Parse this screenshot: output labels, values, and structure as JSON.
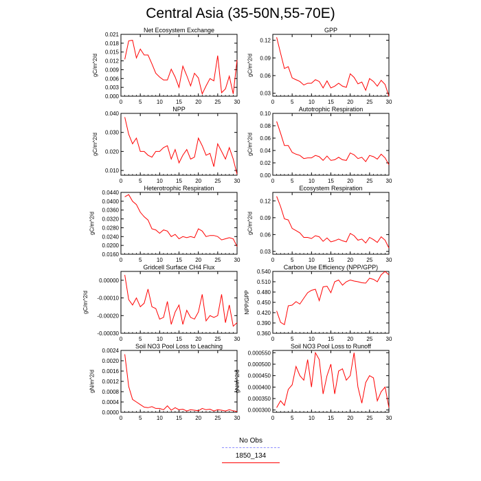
{
  "title": "Central Asia (35-50N,55-70E)",
  "legend": {
    "items": [
      {
        "label": "No Obs",
        "color": "#8c8cff",
        "style": "dashed"
      },
      {
        "label": "1850_134",
        "color": "#ff0000",
        "style": "solid"
      }
    ]
  },
  "chart_data": [
    {
      "type": "line",
      "title": "Net Ecosystem Exchange",
      "ylabel": "gC/m^2/d",
      "xlim": [
        0,
        30
      ],
      "ylim": [
        0.0,
        0.021
      ],
      "xticks": [
        "0",
        "5",
        "10",
        "15",
        "20",
        "25",
        "30"
      ],
      "yticks": [
        "0.000",
        "0.003",
        "0.006",
        "0.009",
        "0.012",
        "0.015",
        "0.018",
        "0.021"
      ],
      "series": [
        {
          "color": "#ff0000",
          "x": [
            1,
            2,
            3,
            4,
            5,
            6,
            7,
            8,
            9,
            10,
            11,
            12,
            13,
            14,
            15,
            16,
            17,
            18,
            19,
            20,
            21,
            22,
            23,
            24,
            25,
            26,
            27,
            28,
            29,
            30
          ],
          "values": [
            0.0125,
            0.0188,
            0.019,
            0.013,
            0.016,
            0.014,
            0.014,
            0.011,
            0.0078,
            0.0065,
            0.0055,
            0.0055,
            0.0092,
            0.0065,
            0.003,
            0.0102,
            0.007,
            0.0035,
            0.0078,
            0.0062,
            0.0008,
            0.0035,
            0.006,
            0.0052,
            0.0138,
            0.0012,
            0.0025,
            0.0068,
            0.0008,
            0.0123
          ]
        }
      ]
    },
    {
      "type": "line",
      "title": "GPP",
      "ylabel": "gC/m^2/d",
      "xlim": [
        0,
        30
      ],
      "ylim": [
        0.025,
        0.13
      ],
      "xticks": [
        "0",
        "5",
        "10",
        "15",
        "20",
        "25",
        "30"
      ],
      "yticks": [
        "0.03",
        "0.06",
        "0.09",
        "0.12"
      ],
      "series": [
        {
          "color": "#ff0000",
          "x": [
            1,
            2,
            3,
            4,
            5,
            6,
            7,
            8,
            9,
            10,
            11,
            12,
            13,
            14,
            15,
            16,
            17,
            18,
            19,
            20,
            21,
            22,
            23,
            24,
            25,
            26,
            27,
            28,
            29,
            30
          ],
          "values": [
            0.125,
            0.098,
            0.072,
            0.075,
            0.056,
            0.053,
            0.05,
            0.044,
            0.047,
            0.047,
            0.053,
            0.05,
            0.039,
            0.051,
            0.039,
            0.042,
            0.047,
            0.042,
            0.04,
            0.063,
            0.057,
            0.046,
            0.049,
            0.035,
            0.055,
            0.05,
            0.042,
            0.052,
            0.045,
            0.025
          ]
        }
      ]
    },
    {
      "type": "line",
      "title": "NPP",
      "ylabel": "gC/m^2/d",
      "xlim": [
        0,
        30
      ],
      "ylim": [
        0.0075,
        0.04
      ],
      "xticks": [
        "0",
        "5",
        "10",
        "15",
        "20",
        "25",
        "30"
      ],
      "yticks": [
        "0.010",
        "0.020",
        "0.030",
        "0.040"
      ],
      "series": [
        {
          "color": "#ff0000",
          "x": [
            1,
            2,
            3,
            4,
            5,
            6,
            7,
            8,
            9,
            10,
            11,
            12,
            13,
            14,
            15,
            16,
            17,
            18,
            19,
            20,
            21,
            22,
            23,
            24,
            25,
            26,
            27,
            28,
            29,
            30
          ],
          "values": [
            0.038,
            0.029,
            0.024,
            0.027,
            0.02,
            0.02,
            0.018,
            0.017,
            0.02,
            0.02,
            0.022,
            0.023,
            0.016,
            0.021,
            0.014,
            0.018,
            0.021,
            0.016,
            0.017,
            0.027,
            0.023,
            0.018,
            0.019,
            0.012,
            0.024,
            0.02,
            0.016,
            0.022,
            0.016,
            0.008
          ]
        }
      ]
    },
    {
      "type": "line",
      "title": "Autotrophic Respiration",
      "ylabel": "gC/m^2/d",
      "xlim": [
        0,
        30
      ],
      "ylim": [
        0.0,
        0.1
      ],
      "xticks": [
        "0",
        "5",
        "10",
        "15",
        "20",
        "25",
        "30"
      ],
      "yticks": [
        "0.00",
        "0.02",
        "0.04",
        "0.06",
        "0.08",
        "0.10"
      ],
      "series": [
        {
          "color": "#ff0000",
          "x": [
            1,
            2,
            3,
            4,
            5,
            6,
            7,
            8,
            9,
            10,
            11,
            12,
            13,
            14,
            15,
            16,
            17,
            18,
            19,
            20,
            21,
            22,
            23,
            24,
            25,
            26,
            27,
            28,
            29,
            30
          ],
          "values": [
            0.087,
            0.068,
            0.048,
            0.048,
            0.037,
            0.034,
            0.032,
            0.027,
            0.028,
            0.028,
            0.032,
            0.03,
            0.024,
            0.031,
            0.024,
            0.025,
            0.029,
            0.025,
            0.024,
            0.036,
            0.033,
            0.027,
            0.029,
            0.022,
            0.032,
            0.03,
            0.026,
            0.034,
            0.028,
            0.017
          ]
        }
      ]
    },
    {
      "type": "line",
      "title": "Heterotrophic Respiration",
      "ylabel": "gC/m^2/d",
      "xlim": [
        0,
        30
      ],
      "ylim": [
        0.016,
        0.044
      ],
      "xticks": [
        "0",
        "5",
        "10",
        "15",
        "20",
        "25",
        "30"
      ],
      "yticks": [
        "0.0160",
        "0.0200",
        "0.0240",
        "0.0280",
        "0.0320",
        "0.0360",
        "0.0400",
        "0.0440"
      ],
      "series": [
        {
          "color": "#ff0000",
          "x": [
            1,
            2,
            3,
            4,
            5,
            6,
            7,
            8,
            9,
            10,
            11,
            12,
            13,
            14,
            15,
            16,
            17,
            18,
            19,
            20,
            21,
            22,
            23,
            24,
            25,
            26,
            27,
            28,
            29,
            30
          ],
          "values": [
            0.042,
            0.043,
            0.04,
            0.0385,
            0.035,
            0.033,
            0.0315,
            0.0275,
            0.027,
            0.0255,
            0.027,
            0.0265,
            0.024,
            0.025,
            0.023,
            0.024,
            0.0235,
            0.024,
            0.0235,
            0.0275,
            0.0265,
            0.024,
            0.0245,
            0.0245,
            0.024,
            0.0225,
            0.023,
            0.0235,
            0.023,
            0.0195
          ]
        }
      ]
    },
    {
      "type": "line",
      "title": "Ecosystem Respiration",
      "ylabel": "gC/m^2/d",
      "xlim": [
        0,
        30
      ],
      "ylim": [
        0.025,
        0.135
      ],
      "xticks": [
        "0",
        "5",
        "10",
        "15",
        "20",
        "25",
        "30"
      ],
      "yticks": [
        "0.03",
        "0.06",
        "0.09",
        "0.12"
      ],
      "series": [
        {
          "color": "#ff0000",
          "x": [
            1,
            2,
            3,
            4,
            5,
            6,
            7,
            8,
            9,
            10,
            11,
            12,
            13,
            14,
            15,
            16,
            17,
            18,
            19,
            20,
            21,
            22,
            23,
            24,
            25,
            26,
            27,
            28,
            29,
            30
          ],
          "values": [
            0.128,
            0.11,
            0.088,
            0.086,
            0.071,
            0.067,
            0.063,
            0.055,
            0.055,
            0.053,
            0.058,
            0.056,
            0.048,
            0.054,
            0.047,
            0.049,
            0.052,
            0.049,
            0.047,
            0.062,
            0.058,
            0.05,
            0.052,
            0.045,
            0.055,
            0.051,
            0.046,
            0.056,
            0.05,
            0.036
          ]
        }
      ]
    },
    {
      "type": "line",
      "title": "Gridcell Surface CH4 Flux",
      "ylabel": "gC/m^2/d",
      "xlim": [
        0,
        30
      ],
      "ylim": [
        -0.0003,
        5e-05
      ],
      "xticks": [
        "0",
        "5",
        "10",
        "15",
        "20",
        "25",
        "30"
      ],
      "yticks": [
        "-0.00030",
        "-0.00020",
        "-0.00010",
        "0.00000"
      ],
      "series": [
        {
          "color": "#ff0000",
          "x": [
            1,
            2,
            3,
            4,
            5,
            6,
            7,
            8,
            9,
            10,
            11,
            12,
            13,
            14,
            15,
            16,
            17,
            18,
            19,
            20,
            21,
            22,
            23,
            24,
            25,
            26,
            27,
            28,
            29,
            30
          ],
          "values": [
            3e-05,
            -0.00011,
            -0.00014,
            -0.0001,
            -0.00015,
            -0.00013,
            -5e-05,
            -0.00015,
            -0.00016,
            -0.00022,
            -0.00021,
            -0.00012,
            -0.00025,
            -0.00018,
            -0.00014,
            -0.00025,
            -0.00017,
            -0.00021,
            -0.00022,
            -0.00018,
            -8e-05,
            -0.00023,
            -0.0002,
            -0.00021,
            -0.0002,
            -8e-05,
            -0.00024,
            -0.00014,
            -0.00026,
            -0.00024
          ]
        }
      ]
    },
    {
      "type": "line",
      "title": "Carbon Use Efficiency (NPP/GPP)",
      "ylabel": "NPP/GPP",
      "xlim": [
        0,
        30
      ],
      "ylim": [
        0.36,
        0.54
      ],
      "xticks": [
        "0",
        "5",
        "10",
        "15",
        "20",
        "25",
        "30"
      ],
      "yticks": [
        "0.360",
        "0.390",
        "0.420",
        "0.450",
        "0.480",
        "0.510",
        "0.540"
      ],
      "series": [
        {
          "color": "#ff0000",
          "x": [
            1,
            2,
            3,
            4,
            5,
            6,
            7,
            8,
            9,
            10,
            11,
            12,
            13,
            14,
            15,
            16,
            17,
            18,
            19,
            20,
            21,
            22,
            23,
            24,
            25,
            26,
            27,
            28,
            29,
            30
          ],
          "values": [
            0.425,
            0.392,
            0.385,
            0.44,
            0.442,
            0.452,
            0.445,
            0.462,
            0.478,
            0.485,
            0.488,
            0.455,
            0.495,
            0.497,
            0.478,
            0.51,
            0.515,
            0.5,
            0.51,
            0.515,
            0.512,
            0.51,
            0.507,
            0.506,
            0.52,
            0.517,
            0.51,
            0.53,
            0.54,
            0.53
          ]
        }
      ]
    },
    {
      "type": "line",
      "title": "Soil NO3 Pool Loss to Leaching",
      "ylabel": "gN/m^2/d",
      "xlim": [
        0,
        30
      ],
      "ylim": [
        0.0,
        0.0024
      ],
      "xticks": [
        "0",
        "5",
        "10",
        "15",
        "20",
        "25",
        "30"
      ],
      "yticks": [
        "0.0000",
        "0.0004",
        "0.0008",
        "0.0012",
        "0.0016",
        "0.0020",
        "0.0024"
      ],
      "series": [
        {
          "color": "#ff0000",
          "x": [
            1,
            2,
            3,
            4,
            5,
            6,
            7,
            8,
            9,
            10,
            11,
            12,
            13,
            14,
            15,
            16,
            17,
            18,
            19,
            20,
            21,
            22,
            23,
            24,
            25,
            26,
            27,
            28,
            29,
            30
          ],
          "values": [
            0.00225,
            0.001,
            0.0005,
            0.0004,
            0.0003,
            0.0002,
            0.00018,
            0.00022,
            0.00015,
            0.00015,
            0.0001,
            0.00025,
            8e-05,
            0.00018,
            0.0001,
            0.00012,
            5e-05,
            0.0001,
            8e-05,
            6e-05,
            0.00015,
            0.0001,
            0.00012,
            5e-05,
            0.0001,
            8e-05,
            5e-05,
            0.0001,
            6e-05,
            3e-05
          ]
        }
      ]
    },
    {
      "type": "line",
      "title": "Soil NO3 Pool Loss to Runoff",
      "ylabel": "gN/m^2/d",
      "xlim": [
        0,
        30
      ],
      "ylim": [
        0.00029,
        0.00056
      ],
      "xticks": [
        "0",
        "5",
        "10",
        "15",
        "20",
        "25",
        "30"
      ],
      "yticks": [
        "0.000300",
        "0.000350",
        "0.000400",
        "0.000450",
        "0.000500",
        "0.000550"
      ],
      "series": [
        {
          "color": "#ff0000",
          "x": [
            1,
            2,
            3,
            4,
            5,
            6,
            7,
            8,
            9,
            10,
            11,
            12,
            13,
            14,
            15,
            16,
            17,
            18,
            19,
            20,
            21,
            22,
            23,
            24,
            25,
            26,
            27,
            28,
            29,
            30
          ],
          "values": [
            0.00031,
            0.00034,
            0.00032,
            0.00039,
            0.00041,
            0.00049,
            0.00045,
            0.00043,
            0.00052,
            0.0004,
            0.00055,
            0.00052,
            0.00037,
            0.00045,
            0.0005,
            0.00037,
            0.00047,
            0.00048,
            0.00043,
            0.00045,
            0.00055,
            0.0004,
            0.00033,
            0.00042,
            0.00045,
            0.00044,
            0.00034,
            0.00038,
            0.0004,
            0.00031
          ]
        }
      ]
    }
  ]
}
